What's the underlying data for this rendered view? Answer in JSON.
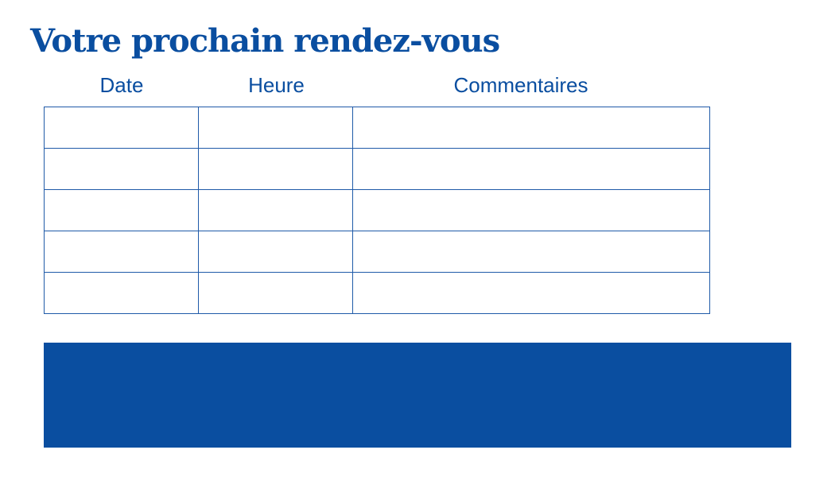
{
  "title": "Votre prochain rendez-vous",
  "table": {
    "headers": [
      "Date",
      "Heure",
      "Commentaires"
    ],
    "rows": [
      [
        "",
        "",
        ""
      ],
      [
        "",
        "",
        ""
      ],
      [
        "",
        "",
        ""
      ],
      [
        "",
        "",
        ""
      ],
      [
        "",
        "",
        ""
      ]
    ]
  },
  "colors": {
    "accent": "#0a4ea0"
  }
}
